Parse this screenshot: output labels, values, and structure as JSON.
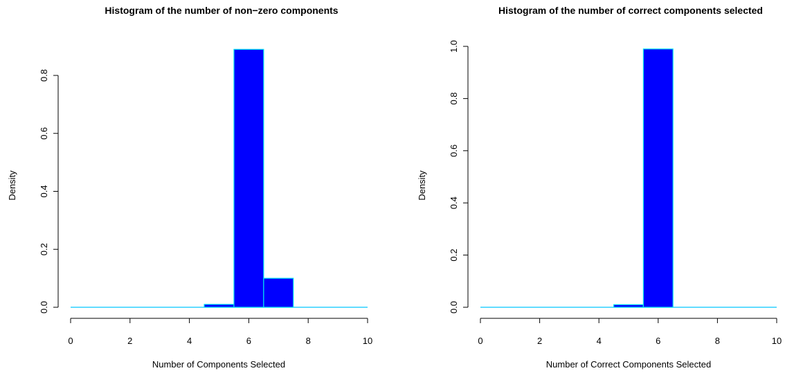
{
  "chart_data": [
    {
      "type": "bar",
      "title": "Histogram of the number of non−zero components",
      "xlabel": "Number of Components Selected",
      "ylabel": "Density",
      "xlim": [
        0,
        10
      ],
      "ylim": [
        0,
        0.8
      ],
      "x_ticks": [
        0,
        2,
        4,
        6,
        8,
        10
      ],
      "x_tick_labels": [
        "0",
        "2",
        "4",
        "6",
        "8",
        "10"
      ],
      "y_ticks": [
        0.0,
        0.2,
        0.4,
        0.6,
        0.8
      ],
      "y_tick_labels": [
        "0.0",
        "0.2",
        "0.4",
        "0.6",
        "0.8"
      ],
      "bins": [
        {
          "from": 4.5,
          "to": 5.5,
          "density": 0.01
        },
        {
          "from": 5.5,
          "to": 6.5,
          "density": 0.89
        },
        {
          "from": 6.5,
          "to": 7.5,
          "density": 0.1
        }
      ],
      "baseline": [
        0,
        10
      ],
      "grid": false,
      "colors": {
        "fill": "#0000ff",
        "border": "#00e5ee",
        "baseline": "#00c8ff"
      }
    },
    {
      "type": "bar",
      "title": "Histogram of the number of correct components selected",
      "xlabel": "Number of Correct Components Selected",
      "ylabel": "Density",
      "xlim": [
        0,
        10
      ],
      "ylim": [
        0,
        1.0
      ],
      "x_ticks": [
        0,
        2,
        4,
        6,
        8,
        10
      ],
      "x_tick_labels": [
        "0",
        "2",
        "4",
        "6",
        "8",
        "10"
      ],
      "y_ticks": [
        0.0,
        0.2,
        0.4,
        0.6,
        0.8,
        1.0
      ],
      "y_tick_labels": [
        "0.0",
        "0.2",
        "0.4",
        "0.6",
        "0.8",
        "1.0"
      ],
      "bins": [
        {
          "from": 4.5,
          "to": 5.5,
          "density": 0.01
        },
        {
          "from": 5.5,
          "to": 6.5,
          "density": 0.99
        }
      ],
      "baseline": [
        0,
        10
      ],
      "grid": false,
      "colors": {
        "fill": "#0000ff",
        "border": "#00e5ee",
        "baseline": "#00c8ff"
      }
    }
  ]
}
